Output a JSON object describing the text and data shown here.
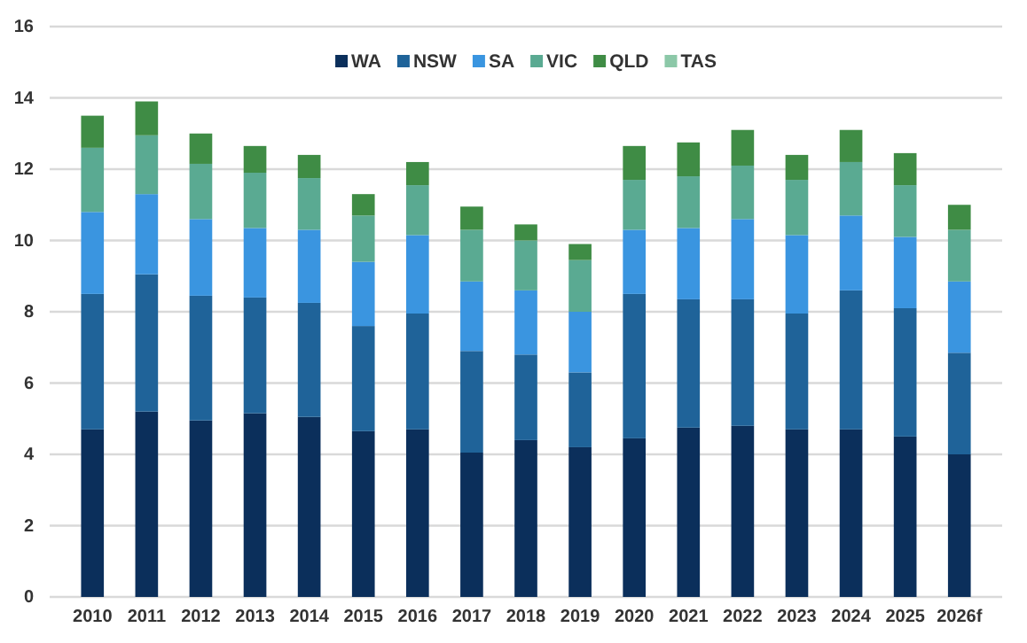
{
  "chart_data": {
    "type": "bar",
    "stacked": true,
    "categories": [
      "2010",
      "2011",
      "2012",
      "2013",
      "2014",
      "2015",
      "2016",
      "2017",
      "2018",
      "2019",
      "2020",
      "2021",
      "2022",
      "2023",
      "2024",
      "2025",
      "2026f"
    ],
    "series": [
      {
        "name": "WA",
        "color": "#0b2f5b",
        "values": [
          4.7,
          5.2,
          4.95,
          5.15,
          5.05,
          4.65,
          4.7,
          4.05,
          4.4,
          4.2,
          4.45,
          4.75,
          4.8,
          4.7,
          4.7,
          4.5,
          4.0
        ]
      },
      {
        "name": "NSW",
        "color": "#1f6399",
        "values": [
          3.8,
          3.85,
          3.5,
          3.25,
          3.2,
          2.95,
          3.25,
          2.85,
          2.4,
          2.1,
          4.05,
          3.6,
          3.55,
          3.25,
          3.9,
          3.6,
          2.85
        ]
      },
      {
        "name": "SA",
        "color": "#3a95e0",
        "values": [
          2.3,
          2.25,
          2.15,
          1.95,
          2.05,
          1.8,
          2.2,
          1.95,
          1.8,
          1.7,
          1.8,
          2.0,
          2.25,
          2.2,
          2.1,
          2.0,
          2.0
        ]
      },
      {
        "name": "VIC",
        "color": "#5aaa92",
        "values": [
          1.8,
          1.65,
          1.55,
          1.55,
          1.45,
          1.3,
          1.4,
          1.45,
          1.4,
          1.45,
          1.4,
          1.45,
          1.5,
          1.55,
          1.5,
          1.45,
          1.45
        ]
      },
      {
        "name": "QLD",
        "color": "#3f8c45",
        "values": [
          0.9,
          0.95,
          0.85,
          0.75,
          0.65,
          0.6,
          0.65,
          0.65,
          0.45,
          0.45,
          0.95,
          0.95,
          1.0,
          0.7,
          0.9,
          0.9,
          0.7
        ]
      },
      {
        "name": "TAS",
        "color": "#8cc8a8",
        "values": [
          0,
          0,
          0,
          0,
          0,
          0,
          0,
          0,
          0,
          0,
          0,
          0,
          0,
          0,
          0,
          0,
          0
        ]
      }
    ],
    "ylim": [
      0,
      16
    ],
    "yticks": [
      0,
      2,
      4,
      6,
      8,
      10,
      12,
      14,
      16
    ],
    "grid": "y",
    "legend": "top"
  }
}
